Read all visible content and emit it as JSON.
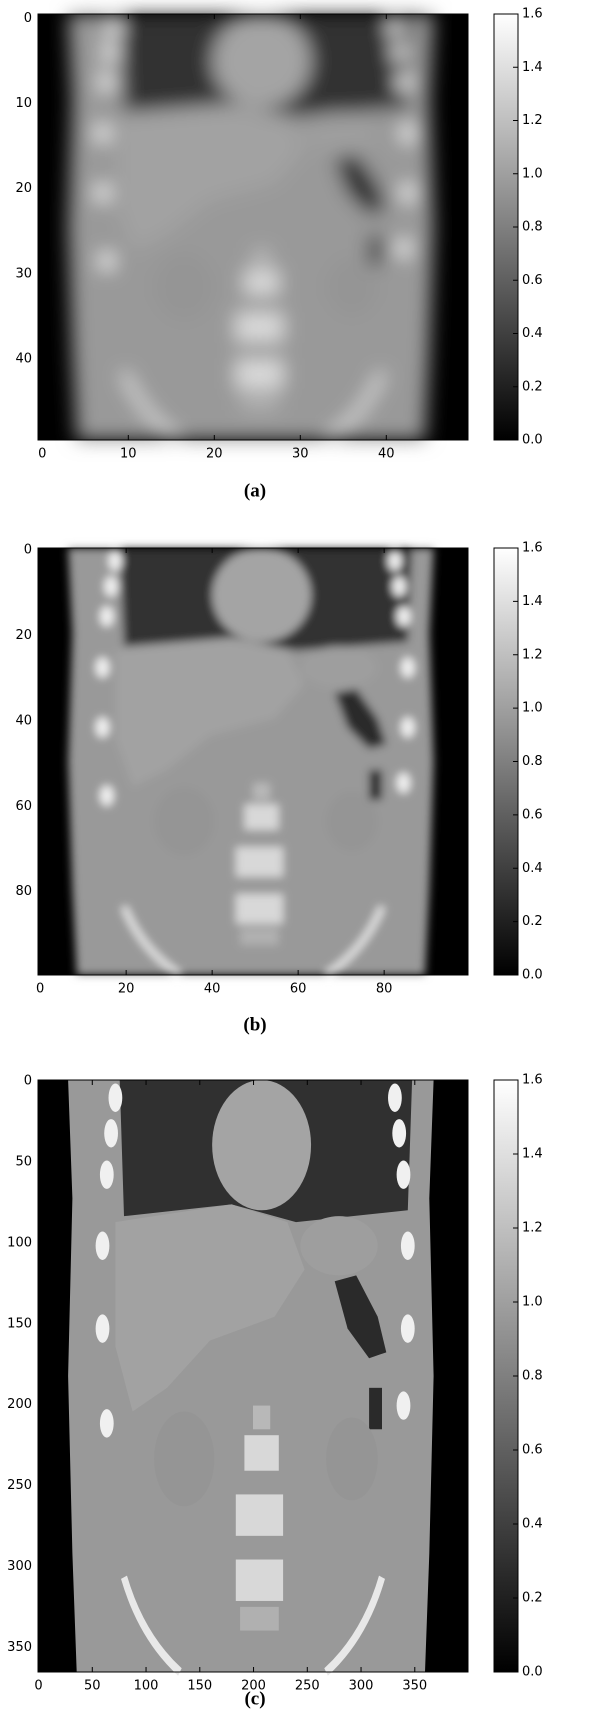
{
  "chart_data": [
    {
      "type": "image",
      "caption": "(a)",
      "cmap": "gray",
      "xlim": [
        -0.5,
        49.5
      ],
      "ylim": [
        49.5,
        -0.5
      ],
      "xticks": [
        0,
        10,
        20,
        30,
        40
      ],
      "yticks": [
        0,
        10,
        20,
        30,
        40
      ],
      "colorbar": {
        "lim": [
          0,
          1.6
        ],
        "ticks": [
          {
            "value": 0,
            "label": "0.0"
          },
          0.2,
          0.4,
          0.6,
          0.8,
          {
            "value": 1,
            "label": "1.0"
          },
          1.2,
          1.4,
          1.6
        ]
      }
    },
    {
      "type": "image",
      "caption": "(b)",
      "cmap": "gray",
      "xlim": [
        -0.5,
        99.5
      ],
      "ylim": [
        99.5,
        -0.5
      ],
      "xticks": [
        0,
        20,
        40,
        60,
        80
      ],
      "yticks": [
        0,
        20,
        40,
        60,
        80
      ],
      "colorbar": {
        "lim": [
          0,
          1.6
        ],
        "ticks": [
          {
            "value": 0,
            "label": "0.0"
          },
          0.2,
          0.4,
          0.6,
          0.8,
          {
            "value": 1,
            "label": "1.0"
          },
          1.2,
          1.4,
          1.6
        ]
      }
    },
    {
      "type": "image",
      "caption": "(c)",
      "cmap": "gray",
      "xlim": [
        -0.5,
        399.5
      ],
      "ylim": [
        365,
        -0.5
      ],
      "xticks": [
        0,
        50,
        100,
        150,
        200,
        250,
        300,
        350
      ],
      "yticks": [
        0,
        50,
        100,
        150,
        200,
        250,
        300,
        350
      ],
      "colorbar": {
        "lim": [
          0,
          1.6
        ],
        "ticks": [
          {
            "value": 0,
            "label": "0.0"
          },
          0.2,
          0.4,
          0.6,
          0.8,
          {
            "value": 1,
            "label": "1.0"
          },
          1.2,
          1.4,
          1.6
        ]
      }
    }
  ]
}
